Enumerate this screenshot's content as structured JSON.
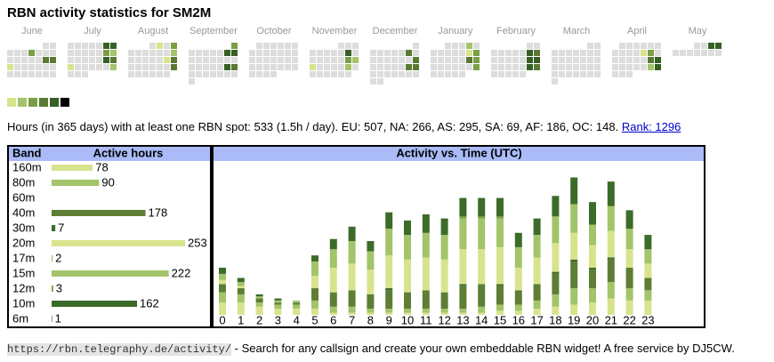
{
  "title": "RBN activity statistics for SM2M",
  "calendar": {
    "level_colors": [
      "#dddddd",
      "#d9e38d",
      "#a3c46a",
      "#7a9e45",
      "#5a7a33",
      "#355f24",
      "#000000"
    ],
    "months": [
      {
        "name": "June",
        "weeks": [
          [
            null,
            null,
            null,
            null,
            null,
            0,
            0
          ],
          [
            0,
            0,
            0,
            3,
            0,
            0,
            0
          ],
          [
            0,
            0,
            0,
            0,
            0,
            4,
            4
          ],
          [
            1,
            0,
            0,
            0,
            0,
            0,
            0
          ],
          [
            0,
            0,
            0,
            0,
            0,
            0,
            0
          ]
        ]
      },
      {
        "name": "July",
        "weeks": [
          [
            0,
            0,
            0,
            0,
            0,
            5,
            5
          ],
          [
            0,
            0,
            0,
            0,
            0,
            3,
            2
          ],
          [
            0,
            0,
            0,
            0,
            0,
            5,
            4
          ],
          [
            1,
            0,
            0,
            0,
            0,
            0,
            2
          ],
          [
            0,
            0,
            0
          ]
        ]
      },
      {
        "name": "August",
        "weeks": [
          [
            null,
            null,
            null,
            0,
            1,
            0,
            3
          ],
          [
            0,
            0,
            0,
            0,
            0,
            0,
            2
          ],
          [
            0,
            0,
            0,
            0,
            0,
            1,
            4
          ],
          [
            0,
            0,
            0,
            0,
            0,
            0,
            4
          ],
          [
            0,
            0,
            0,
            0,
            0,
            0
          ]
        ]
      },
      {
        "name": "September",
        "weeks": [
          [
            null,
            null,
            null,
            null,
            null,
            null,
            3
          ],
          [
            0,
            0,
            0,
            0,
            0,
            5,
            5
          ],
          [
            0,
            0,
            0,
            0,
            0,
            0,
            0
          ],
          [
            0,
            0,
            0,
            0,
            0,
            5,
            4
          ],
          [
            0,
            0,
            0,
            0,
            0,
            0,
            0
          ],
          [
            0
          ]
        ]
      },
      {
        "name": "October",
        "weeks": [
          [
            null,
            0,
            0,
            0,
            0,
            0,
            0
          ],
          [
            0,
            0,
            0,
            0,
            0,
            0,
            0
          ],
          [
            0,
            0,
            0,
            0,
            0,
            0,
            0
          ],
          [
            0,
            0,
            0,
            0,
            0,
            0,
            0
          ],
          [
            0,
            0,
            0,
            0
          ]
        ]
      },
      {
        "name": "November",
        "weeks": [
          [
            null,
            null,
            null,
            null,
            0,
            0,
            0
          ],
          [
            0,
            0,
            0,
            0,
            0,
            5,
            0
          ],
          [
            0,
            0,
            0,
            0,
            0,
            3,
            2
          ],
          [
            1,
            0,
            0,
            0,
            0,
            2,
            0
          ],
          [
            0,
            0,
            0,
            0,
            0,
            0
          ]
        ]
      },
      {
        "name": "December",
        "weeks": [
          [
            null,
            null,
            null,
            null,
            null,
            null,
            0
          ],
          [
            0,
            0,
            0,
            0,
            0,
            4,
            0
          ],
          [
            0,
            0,
            0,
            0,
            0,
            0,
            4
          ],
          [
            0,
            0,
            0,
            0,
            0,
            4,
            4
          ],
          [
            0,
            0,
            0,
            0,
            0,
            0,
            0
          ],
          [
            0,
            0
          ]
        ]
      },
      {
        "name": "January",
        "weeks": [
          [
            null,
            null,
            0,
            0,
            0,
            2,
            0
          ],
          [
            0,
            0,
            0,
            0,
            0,
            1,
            3
          ],
          [
            0,
            0,
            0,
            0,
            0,
            4,
            3
          ],
          [
            0,
            0,
            0,
            0,
            0,
            0,
            3
          ],
          [
            0,
            0,
            0,
            0,
            0
          ]
        ]
      },
      {
        "name": "February",
        "weeks": [
          [
            null,
            null,
            null,
            null,
            null,
            0,
            0
          ],
          [
            0,
            0,
            0,
            0,
            0,
            5,
            4
          ],
          [
            0,
            0,
            0,
            0,
            0,
            5,
            5
          ],
          [
            0,
            0,
            0,
            0,
            0,
            5,
            4
          ],
          [
            0,
            0,
            0,
            0,
            0
          ]
        ]
      },
      {
        "name": "March",
        "weeks": [
          [
            null,
            null,
            null,
            null,
            null,
            0,
            0
          ],
          [
            0,
            0,
            0,
            0,
            0,
            0,
            0
          ],
          [
            0,
            0,
            0,
            0,
            0,
            0,
            0
          ],
          [
            0,
            0,
            0,
            0,
            0,
            0,
            0
          ],
          [
            0,
            0,
            0,
            0,
            0,
            0,
            0
          ],
          [
            0
          ]
        ]
      },
      {
        "name": "April",
        "weeks": [
          [
            null,
            0,
            0,
            0,
            0,
            0,
            0
          ],
          [
            0,
            0,
            0,
            0,
            1,
            3,
            0
          ],
          [
            0,
            0,
            0,
            0,
            0,
            4,
            5
          ],
          [
            0,
            0,
            0,
            0,
            0,
            2,
            5
          ],
          [
            0,
            0,
            0
          ]
        ]
      },
      {
        "name": "May",
        "weeks": [
          [
            null,
            null,
            null,
            0,
            0,
            5,
            5
          ],
          [
            0,
            0,
            0,
            0,
            0,
            0,
            0
          ]
        ]
      }
    ]
  },
  "summary": {
    "text": "Hours (in 365 days) with at least one RBN spot: 533 (1.5h / day). EU: 507, NA: 266, AS: 295, SA: 69, AF: 186, OC: 148.",
    "link": "Rank: 1296"
  },
  "band_table": {
    "headers": [
      "Band",
      "Active hours"
    ],
    "hours": [
      78,
      90,
      null,
      178,
      7,
      253,
      2,
      222,
      3,
      162,
      1
    ]
  },
  "chart_data": {
    "type": "bar",
    "title": "Activity vs. Time (UTC)",
    "categories": [
      "0",
      "1",
      "2",
      "3",
      "4",
      "5",
      "6",
      "7",
      "8",
      "9",
      "10",
      "11",
      "12",
      "13",
      "14",
      "15",
      "16",
      "17",
      "18",
      "19",
      "20",
      "21",
      "22",
      "23"
    ],
    "ylim": [
      0,
      72
    ],
    "series": [
      {
        "name": "160m",
        "color": "#d9e38d",
        "values": [
          6,
          6,
          4,
          3,
          3,
          3,
          1,
          1,
          1,
          1,
          1,
          1,
          1,
          1,
          1,
          2,
          2,
          3,
          4,
          5,
          6,
          8,
          7,
          7
        ]
      },
      {
        "name": "80m",
        "color": "#a3c46a",
        "values": [
          5,
          4,
          2,
          2,
          2,
          4,
          3,
          3,
          2,
          2,
          2,
          2,
          2,
          2,
          3,
          3,
          3,
          4,
          6,
          8,
          7,
          8,
          6,
          5
        ]
      },
      {
        "name": "60m",
        "color": "#7a9e45",
        "values": [
          0,
          0,
          0,
          0,
          0,
          0,
          0,
          0,
          0,
          0,
          0,
          0,
          0,
          0,
          0,
          0,
          0,
          0,
          0,
          0,
          0,
          0,
          0,
          0
        ]
      },
      {
        "name": "40m",
        "color": "#5e7d35",
        "values": [
          4,
          3,
          2,
          1,
          1,
          6,
          7,
          8,
          7,
          9,
          8,
          9,
          8,
          11,
          11,
          9,
          7,
          8,
          10,
          13,
          9,
          11,
          10,
          6
        ]
      },
      {
        "name": "30m",
        "color": "#3d6b2a",
        "values": [
          0,
          0,
          0,
          0,
          0,
          0,
          0,
          0,
          0,
          1,
          0,
          0,
          0,
          1,
          0,
          1,
          0,
          0,
          1,
          1,
          1,
          1,
          0,
          0
        ]
      },
      {
        "name": "20m",
        "color": "#d9e38d",
        "values": [
          2,
          1,
          0,
          0,
          0,
          6,
          12,
          13,
          12,
          16,
          16,
          16,
          16,
          17,
          17,
          18,
          11,
          13,
          14,
          13,
          11,
          13,
          9,
          7
        ]
      },
      {
        "name": "17m",
        "color": "#a3c46a",
        "values": [
          0,
          0,
          0,
          0,
          0,
          0,
          0,
          0,
          0,
          0,
          0,
          0,
          0,
          1,
          1,
          0,
          0,
          0,
          0,
          0,
          0,
          0,
          0,
          0
        ]
      },
      {
        "name": "15m",
        "color": "#a3c46a",
        "values": [
          3,
          2,
          1,
          1,
          1,
          7,
          9,
          11,
          9,
          13,
          12,
          12,
          12,
          14,
          14,
          14,
          10,
          11,
          13,
          14,
          10,
          12,
          10,
          7
        ]
      },
      {
        "name": "12m",
        "color": "#7a9e45",
        "values": [
          0,
          0,
          0,
          0,
          0,
          0,
          0,
          0,
          0,
          0,
          0,
          0,
          0,
          1,
          1,
          1,
          0,
          0,
          0,
          0,
          0,
          0,
          0,
          0
        ]
      },
      {
        "name": "10m",
        "color": "#3d6b2a",
        "values": [
          3,
          2,
          1,
          1,
          0,
          3,
          5,
          7,
          5,
          8,
          7,
          9,
          7,
          9,
          9,
          9,
          7,
          8,
          10,
          13,
          11,
          12,
          9,
          7
        ]
      },
      {
        "name": "6m",
        "color": "#355f24",
        "values": [
          0,
          0,
          0,
          0,
          0,
          0,
          0,
          0,
          0,
          0,
          0,
          0,
          1,
          0,
          0,
          0,
          0,
          0,
          0,
          0,
          0,
          0,
          0,
          0
        ]
      }
    ]
  },
  "footer": {
    "url": "https://rbn.telegraphy.de/activity/",
    "text": " - Search for any callsign and create your own embeddable RBN widget! A free service by DJ5CW."
  }
}
